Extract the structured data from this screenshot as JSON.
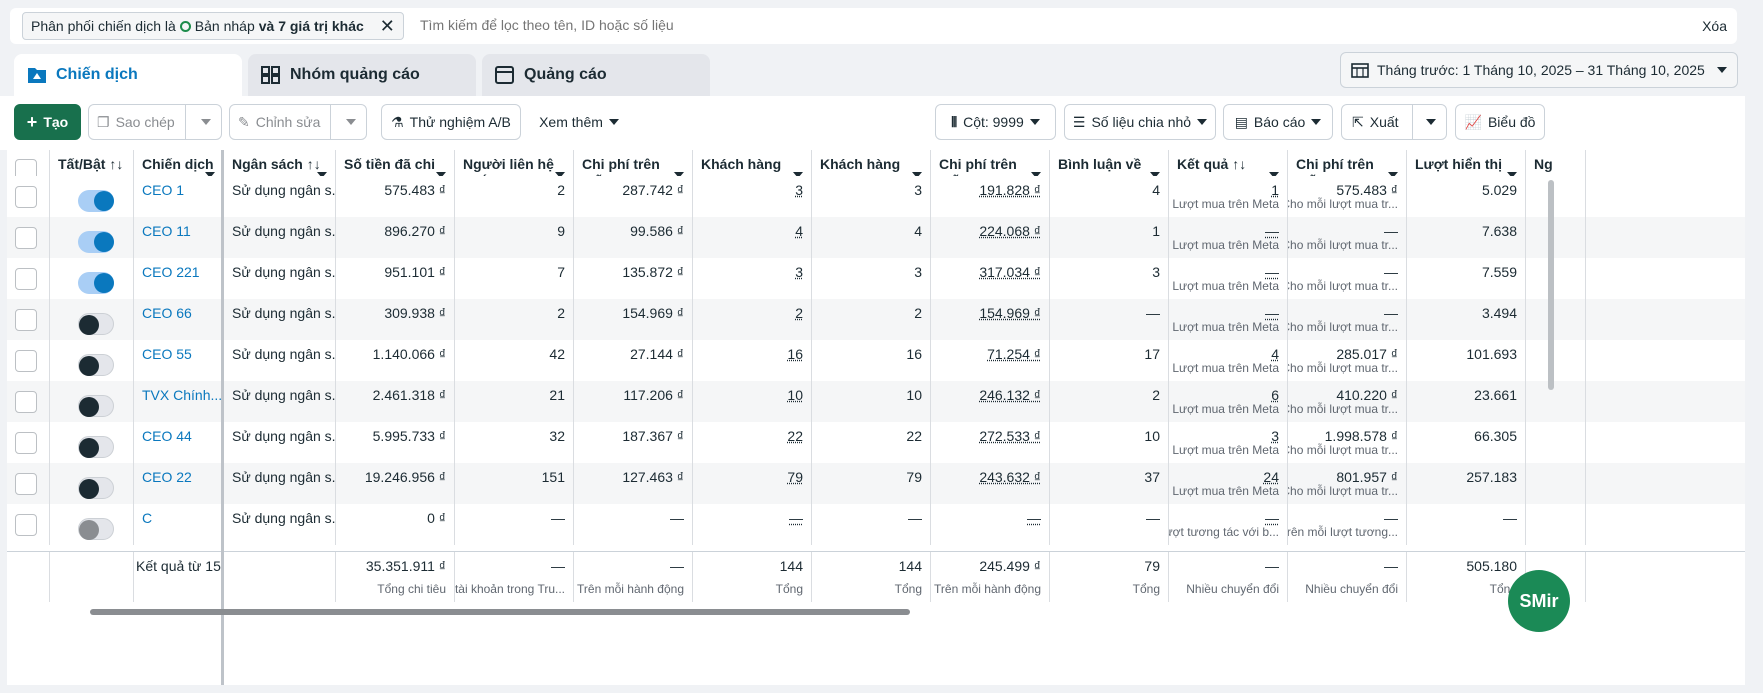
{
  "filter": {
    "prefix": "Phân phối chiến dịch là",
    "status": "Bản nháp",
    "more": "và 7 giá trị khác",
    "search_placeholder": "Tìm kiếm để lọc theo tên, ID hoặc số liệu",
    "clear": "Xóa"
  },
  "tabs": [
    {
      "label": "Chiến dịch",
      "icon": "folder-icon"
    },
    {
      "label": "Nhóm quảng cáo",
      "icon": "grid-icon"
    },
    {
      "label": "Quảng cáo",
      "icon": "ad-icon"
    }
  ],
  "date_range": "Tháng trước: 1 Tháng 10, 2025 – 31 Tháng 10, 2025",
  "toolbar": {
    "create": "Tạo",
    "duplicate": "Sao chép",
    "edit": "Chỉnh sửa",
    "ab_test": "Thử nghiệm A/B",
    "more": "Xem thêm",
    "columns": "Cột: 9999",
    "breakdown": "Số liệu chia nhỏ",
    "reports": "Báo cáo",
    "export": "Xuất",
    "charts": "Biểu đồ"
  },
  "headers": {
    "toggle": "Tất/Bật",
    "campaign": "Chiến dịch",
    "budget": "Ngân sách",
    "spent": "Số tiền đã chi tiêu",
    "contacts": "Người liên hệ nhắn tin mới...",
    "cost_contact": "Chi phí trên mỗi người liê...",
    "leads": "Khách hàng tiềm năng",
    "leads2": "Khách hàng tiềm năng tr...",
    "cost_lead": "Chi phí trên mỗi khách...",
    "comments": "Bình luận về bài viết",
    "results": "Kết quả",
    "cost_result": "Chi phí trên mỗi kết quả",
    "impressions": "Lượt hiển thị",
    "cut": "Ng"
  },
  "rows": [
    {
      "on": true,
      "name": "CEO 1",
      "budget": "Sử dụng ngân s...",
      "spent": "575.483 ₫",
      "contacts": "2",
      "cost_contact": "287.742 ₫",
      "leads": "3",
      "leads2": "3",
      "cost_lead": "191.828 ₫",
      "comments": "4",
      "results": "1",
      "results_sub": "Lượt mua trên Meta",
      "cost_result": "575.483 ₫",
      "cost_result_sub": "Cho mỗi lượt mua tr...",
      "impr": "5.029"
    },
    {
      "on": true,
      "name": "CEO 11",
      "budget": "Sử dụng ngân s...",
      "spent": "896.270 ₫",
      "contacts": "9",
      "cost_contact": "99.586 ₫",
      "leads": "4",
      "leads2": "4",
      "cost_lead": "224.068 ₫",
      "comments": "1",
      "results": "—",
      "results_sub": "Lượt mua trên Meta",
      "cost_result": "—",
      "cost_result_sub": "Cho mỗi lượt mua tr...",
      "impr": "7.638"
    },
    {
      "on": true,
      "name": "CEO 221",
      "budget": "Sử dụng ngân s...",
      "spent": "951.101 ₫",
      "contacts": "7",
      "cost_contact": "135.872 ₫",
      "leads": "3",
      "leads2": "3",
      "cost_lead": "317.034 ₫",
      "comments": "3",
      "results": "—",
      "results_sub": "Lượt mua trên Meta",
      "cost_result": "—",
      "cost_result_sub": "Cho mỗi lượt mua tr...",
      "impr": "7.559"
    },
    {
      "on": false,
      "name": "CEO 66",
      "budget": "Sử dụng ngân s...",
      "spent": "309.938 ₫",
      "contacts": "2",
      "cost_contact": "154.969 ₫",
      "leads": "2",
      "leads2": "2",
      "cost_lead": "154.969 ₫",
      "comments": "—",
      "results": "—",
      "results_sub": "Lượt mua trên Meta",
      "cost_result": "—",
      "cost_result_sub": "Cho mỗi lượt mua tr...",
      "impr": "3.494"
    },
    {
      "on": false,
      "name": "CEO 55",
      "budget": "Sử dụng ngân s...",
      "spent": "1.140.066 ₫",
      "contacts": "42",
      "cost_contact": "27.144 ₫",
      "leads": "16",
      "leads2": "16",
      "cost_lead": "71.254 ₫",
      "comments": "17",
      "results": "4",
      "results_sub": "Lượt mua trên Meta",
      "cost_result": "285.017 ₫",
      "cost_result_sub": "Cho mỗi lượt mua tr...",
      "impr": "101.693"
    },
    {
      "on": false,
      "name": "TVX Chính...",
      "budget": "Sử dụng ngân s...",
      "spent": "2.461.318 ₫",
      "contacts": "21",
      "cost_contact": "117.206 ₫",
      "leads": "10",
      "leads2": "10",
      "cost_lead": "246.132 ₫",
      "comments": "2",
      "results": "6",
      "results_sub": "Lượt mua trên Meta",
      "cost_result": "410.220 ₫",
      "cost_result_sub": "Cho mỗi lượt mua tr...",
      "impr": "23.661"
    },
    {
      "on": false,
      "name": "CEO 44",
      "budget": "Sử dụng ngân s...",
      "spent": "5.995.733 ₫",
      "contacts": "32",
      "cost_contact": "187.367 ₫",
      "leads": "22",
      "leads2": "22",
      "cost_lead": "272.533 ₫",
      "comments": "10",
      "results": "3",
      "results_sub": "Lượt mua trên Meta",
      "cost_result": "1.998.578 ₫",
      "cost_result_sub": "Cho mỗi lượt mua tr...",
      "impr": "66.305"
    },
    {
      "on": false,
      "name": "CEO 22",
      "budget": "Sử dụng ngân s...",
      "spent": "19.246.956 ₫",
      "contacts": "151",
      "cost_contact": "127.463 ₫",
      "leads": "79",
      "leads2": "79",
      "cost_lead": "243.632 ₫",
      "comments": "37",
      "results": "24",
      "results_sub": "Lượt mua trên Meta",
      "cost_result": "801.957 ₫",
      "cost_result_sub": "Cho mỗi lượt mua tr...",
      "impr": "257.183"
    },
    {
      "on": false,
      "dim": true,
      "name": "C",
      "budget": "Sử dụng ngân s...",
      "spent": "0 ₫",
      "contacts": "—",
      "cost_contact": "—",
      "leads": "—",
      "leads2": "—",
      "cost_lead": "—",
      "comments": "—",
      "results": "—",
      "results_sub": "lượt tương tác với b...",
      "cost_result": "—",
      "cost_result_sub": "Trên mỗi lượt tương...",
      "impr": "—"
    }
  ],
  "totals": {
    "label": "Kết quả từ 15",
    "spent": "35.351.911 ₫",
    "spent_sub": "Tổng chi tiêu",
    "contacts": "—",
    "contacts_sub": "tài khoản trong Tru...",
    "cost_contact": "—",
    "cost_contact_sub": "Trên mỗi hành động",
    "leads": "144",
    "leads_sub": "Tổng",
    "leads2": "144",
    "leads2_sub": "Tổng",
    "cost_lead": "245.499 ₫",
    "cost_lead_sub": "Trên mỗi hành động",
    "comments": "79",
    "comments_sub": "Tổng",
    "results": "—",
    "results_sub": "Nhiều chuyển đổi",
    "cost_result": "—",
    "cost_result_sub": "Nhiều chuyển đổi",
    "impr": "505.180",
    "impr_sub": "Tổng"
  },
  "fab": "SMir",
  "colors": {
    "accent": "#0a78be",
    "primary_button": "#18704d",
    "draft_ring": "#1d8c4b"
  }
}
